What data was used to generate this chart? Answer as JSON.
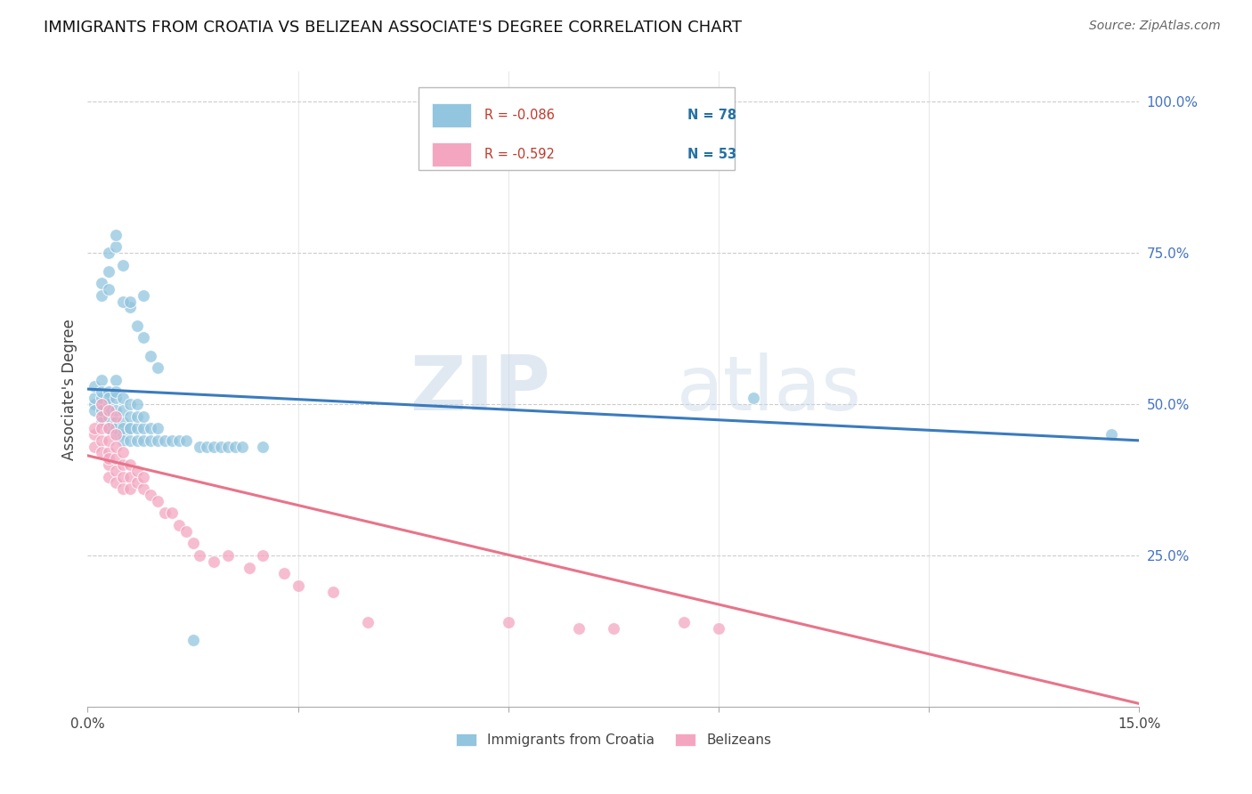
{
  "title": "IMMIGRANTS FROM CROATIA VS BELIZEAN ASSOCIATE'S DEGREE CORRELATION CHART",
  "source": "Source: ZipAtlas.com",
  "ylabel": "Associate's Degree",
  "xlim": [
    0.0,
    0.15
  ],
  "ylim": [
    0.0,
    1.05
  ],
  "legend_blue_r": "R = -0.086",
  "legend_blue_n": "N = 78",
  "legend_pink_r": "R = -0.592",
  "legend_pink_n": "N = 53",
  "blue_color": "#92c5de",
  "pink_color": "#f4a6c0",
  "blue_line_color": "#3a7bbf",
  "pink_line_color": "#e8748a",
  "blue_line_x": [
    0.0,
    0.15
  ],
  "blue_line_y": [
    0.525,
    0.44
  ],
  "pink_line_x": [
    0.0,
    0.15
  ],
  "pink_line_y": [
    0.415,
    0.005
  ],
  "blue_x": [
    0.001,
    0.001,
    0.001,
    0.001,
    0.002,
    0.002,
    0.002,
    0.002,
    0.002,
    0.002,
    0.002,
    0.003,
    0.003,
    0.003,
    0.003,
    0.003,
    0.003,
    0.003,
    0.004,
    0.004,
    0.004,
    0.004,
    0.004,
    0.004,
    0.004,
    0.005,
    0.005,
    0.005,
    0.005,
    0.005,
    0.005,
    0.006,
    0.006,
    0.006,
    0.006,
    0.006,
    0.007,
    0.007,
    0.007,
    0.007,
    0.008,
    0.008,
    0.008,
    0.009,
    0.009,
    0.01,
    0.01,
    0.011,
    0.012,
    0.013,
    0.014,
    0.015,
    0.016,
    0.017,
    0.018,
    0.019,
    0.02,
    0.021,
    0.022,
    0.025,
    0.002,
    0.002,
    0.003,
    0.003,
    0.003,
    0.004,
    0.004,
    0.005,
    0.006,
    0.007,
    0.008,
    0.009,
    0.01,
    0.095,
    0.146,
    0.005,
    0.006,
    0.008
  ],
  "blue_y": [
    0.5,
    0.51,
    0.49,
    0.53,
    0.48,
    0.5,
    0.51,
    0.47,
    0.54,
    0.52,
    0.49,
    0.46,
    0.48,
    0.5,
    0.52,
    0.49,
    0.46,
    0.51,
    0.45,
    0.47,
    0.49,
    0.51,
    0.54,
    0.52,
    0.46,
    0.45,
    0.47,
    0.49,
    0.51,
    0.44,
    0.46,
    0.44,
    0.46,
    0.48,
    0.5,
    0.46,
    0.44,
    0.46,
    0.48,
    0.5,
    0.44,
    0.46,
    0.48,
    0.44,
    0.46,
    0.44,
    0.46,
    0.44,
    0.44,
    0.44,
    0.44,
    0.11,
    0.43,
    0.43,
    0.43,
    0.43,
    0.43,
    0.43,
    0.43,
    0.43,
    0.68,
    0.7,
    0.72,
    0.69,
    0.75,
    0.76,
    0.78,
    0.73,
    0.66,
    0.63,
    0.61,
    0.58,
    0.56,
    0.51,
    0.45,
    0.67,
    0.67,
    0.68
  ],
  "pink_x": [
    0.001,
    0.001,
    0.001,
    0.002,
    0.002,
    0.002,
    0.002,
    0.003,
    0.003,
    0.003,
    0.003,
    0.003,
    0.003,
    0.004,
    0.004,
    0.004,
    0.004,
    0.004,
    0.005,
    0.005,
    0.005,
    0.005,
    0.006,
    0.006,
    0.006,
    0.007,
    0.007,
    0.008,
    0.008,
    0.009,
    0.01,
    0.011,
    0.012,
    0.013,
    0.014,
    0.015,
    0.016,
    0.018,
    0.02,
    0.023,
    0.025,
    0.028,
    0.03,
    0.035,
    0.04,
    0.06,
    0.07,
    0.075,
    0.085,
    0.09,
    0.002,
    0.003,
    0.004
  ],
  "pink_y": [
    0.45,
    0.43,
    0.46,
    0.44,
    0.42,
    0.46,
    0.48,
    0.42,
    0.4,
    0.44,
    0.46,
    0.38,
    0.41,
    0.39,
    0.41,
    0.43,
    0.45,
    0.37,
    0.38,
    0.4,
    0.42,
    0.36,
    0.38,
    0.4,
    0.36,
    0.37,
    0.39,
    0.36,
    0.38,
    0.35,
    0.34,
    0.32,
    0.32,
    0.3,
    0.29,
    0.27,
    0.25,
    0.24,
    0.25,
    0.23,
    0.25,
    0.22,
    0.2,
    0.19,
    0.14,
    0.14,
    0.13,
    0.13,
    0.14,
    0.13,
    0.5,
    0.49,
    0.48
  ]
}
